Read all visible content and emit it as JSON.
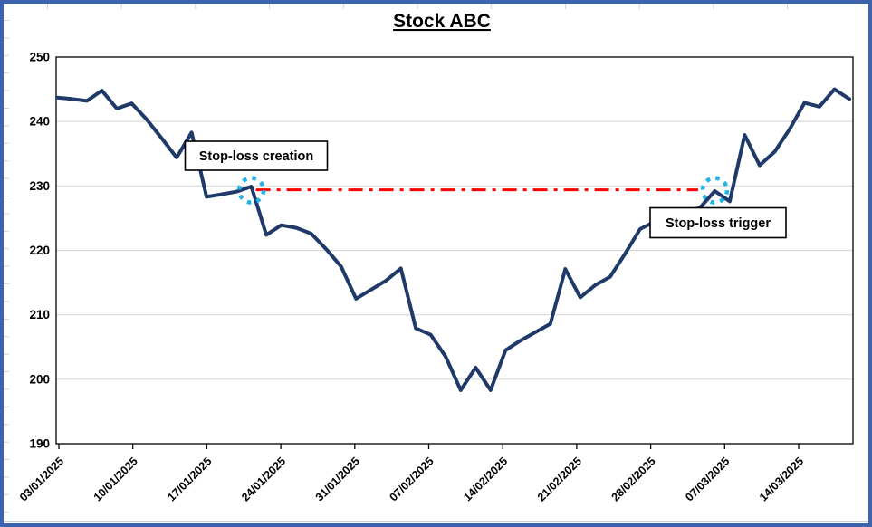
{
  "window": {
    "frame_color": "#3d63ae",
    "sheet_gridline_color": "#ccd2da",
    "plot_border_color": "#000000",
    "gridline_color": "#d9d9d9",
    "background": "#ffffff"
  },
  "chart_data": {
    "type": "line",
    "title": "Stock ABC",
    "xlabel": "",
    "ylabel": "",
    "ylim": [
      190,
      250
    ],
    "y_ticks": [
      190,
      200,
      210,
      220,
      230,
      240,
      250
    ],
    "grid": true,
    "legend": "none",
    "x_tick_labels": [
      "03/01/2025",
      "10/01/2025",
      "17/01/2025",
      "24/01/2025",
      "31/01/2025",
      "07/02/2025",
      "14/02/2025",
      "21/02/2025",
      "28/02/2025",
      "07/03/2025",
      "14/03/2025"
    ],
    "dates": [
      "03/01/2025",
      "06/01/2025",
      "07/01/2025",
      "08/01/2025",
      "09/01/2025",
      "10/01/2025",
      "13/01/2025",
      "14/01/2025",
      "15/01/2025",
      "16/01/2025",
      "17/01/2025",
      "20/01/2025",
      "21/01/2025",
      "22/01/2025",
      "23/01/2025",
      "24/01/2025",
      "27/01/2025",
      "28/01/2025",
      "29/01/2025",
      "30/01/2025",
      "31/01/2025",
      "03/02/2025",
      "04/02/2025",
      "05/02/2025",
      "06/02/2025",
      "07/02/2025",
      "10/02/2025",
      "11/02/2025",
      "12/02/2025",
      "13/02/2025",
      "14/02/2025",
      "17/02/2025",
      "18/02/2025",
      "19/02/2025",
      "20/02/2025",
      "21/02/2025",
      "24/02/2025",
      "25/02/2025",
      "26/02/2025",
      "27/02/2025",
      "28/02/2025",
      "03/03/2025",
      "04/03/2025",
      "05/03/2025",
      "06/03/2025",
      "07/03/2025",
      "10/03/2025",
      "11/03/2025",
      "12/03/2025",
      "13/03/2025",
      "14/03/2025",
      "17/03/2025",
      "18/03/2025",
      "19/03/2025"
    ],
    "series": [
      {
        "name": "Stock ABC",
        "color": "#1f3a68",
        "values": [
          243.7,
          243.5,
          243.2,
          244.8,
          242.0,
          242.8,
          240.3,
          237.4,
          234.4,
          238.3,
          228.3,
          228.7,
          229.1,
          229.9,
          222.4,
          223.9,
          223.5,
          222.6,
          220.2,
          217.5,
          212.5,
          213.9,
          215.3,
          217.2,
          207.9,
          206.9,
          203.5,
          198.3,
          201.8,
          198.3,
          204.5,
          206.0,
          207.3,
          208.6,
          217.1,
          212.7,
          214.6,
          215.9,
          219.5,
          223.3,
          224.5,
          225.3,
          226.0,
          226.6,
          229.2,
          227.6,
          237.9,
          233.2,
          235.3,
          238.8,
          242.9,
          242.3,
          245.0,
          243.5
        ]
      }
    ],
    "annotations": {
      "stop_loss_level": 229.4,
      "stop_line_color": "#ff0000",
      "stop_line_style": "dash-dot",
      "stop_line_start_index": 13,
      "stop_line_end_index": 43,
      "marker_color": "#22b3ea",
      "creation": {
        "label": "Stop-loss creation",
        "date": "22/01/2025",
        "index": 13,
        "value": 229.9
      },
      "trigger": {
        "label": "Stop-loss trigger",
        "date": "06/03/2025",
        "index": 44,
        "value": 229.2
      }
    }
  }
}
